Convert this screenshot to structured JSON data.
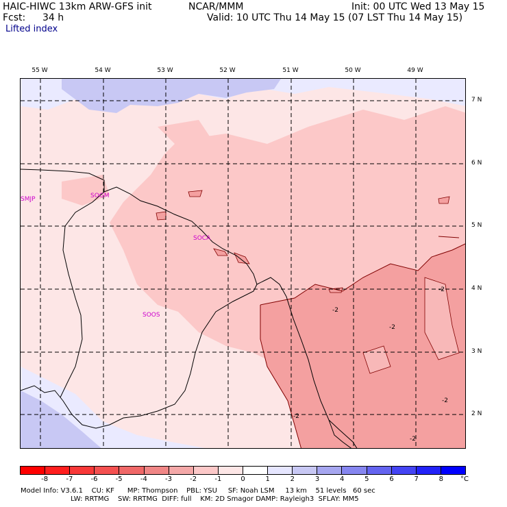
{
  "header": {
    "model": "HAIC-HIWC 13km ARW-GFS init",
    "org": "NCAR/MMM",
    "init": "Init: 00 UTC Wed 13 May 15",
    "fcst_label": "Fcst:",
    "fcst_value": "34 h",
    "valid": "Valid: 10 UTC Thu 14 May 15 (07 LST Thu 14 May 15)",
    "field": "Lifted index"
  },
  "map": {
    "longitudes": [
      "55 W",
      "54 W",
      "53 W",
      "52 W",
      "51 W",
      "50 W",
      "49 W"
    ],
    "latitudes": [
      "7 N",
      "6 N",
      "5 N",
      "4 N",
      "3 N",
      "2 N"
    ],
    "stations": [
      "SMJP",
      "SOGM",
      "SOCA",
      "SOOS"
    ],
    "contour_labels": [
      "-2",
      "-2",
      "-2",
      "-2",
      "-2",
      "-2"
    ],
    "colors": {
      "li_neg3": "#f4a0a0",
      "li_neg2": "#fcc8c8",
      "li_neg1": "#fde6e6",
      "li_pos1": "#eaeaff",
      "li_pos2": "#c8c8f4"
    }
  },
  "colorbar": {
    "unit": "°C",
    "ticks": [
      "-8",
      "-7",
      "-6",
      "-5",
      "-4",
      "-3",
      "-2",
      "-1",
      "0",
      "1",
      "2",
      "3",
      "4",
      "5",
      "6",
      "7",
      "8"
    ],
    "colors": [
      "#ff0000",
      "#ff1e1e",
      "#f83838",
      "#f45050",
      "#f06868",
      "#f08686",
      "#f4a8a8",
      "#fcc8c8",
      "#fde6e6",
      "#ffffff",
      "#e6e6ff",
      "#c8c8f4",
      "#a6a6f0",
      "#8686f0",
      "#6464f0",
      "#4444f4",
      "#2222f8",
      "#0000ff"
    ]
  },
  "footer": {
    "line1": "Model Info: V3.6.1    CU: KF      MP: Thompson    PBL: YSU     SF: Noah LSM     13 km    51 levels   60 sec",
    "line2": "                       LW: RRTMG    SW: RRTMG  DIFF: full    KM: 2D Smagor DAMP: Rayleigh3  SFLAY: MM5"
  }
}
